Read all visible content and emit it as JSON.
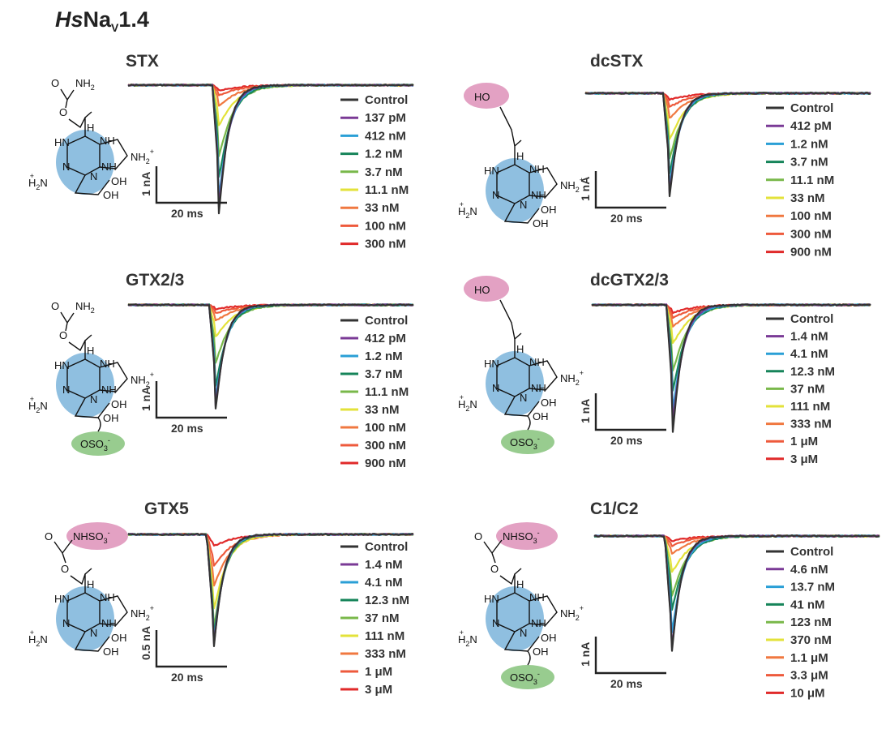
{
  "figure": {
    "title_main": "Hs",
    "title_rest": "Na",
    "title_sub": "V",
    "title_end": "1.4"
  },
  "colors": {
    "series": [
      "#333333",
      "#7a3a96",
      "#2a9fd6",
      "#16845a",
      "#79b84a",
      "#e3e23a",
      "#f07840",
      "#ee5a3c",
      "#e02a2a"
    ],
    "scale": "#222222",
    "blue_core": "#8fbfe0",
    "pink_mod": "#e3a1c3",
    "green_mod": "#98cc8f"
  },
  "structure_labels": {
    "carbamate_o": "O",
    "nh2": "NH",
    "nh2_sub": "2",
    "oh": "OH",
    "ho": "HO",
    "hn": "HN",
    "nh": "NH",
    "n": "N",
    "h": "H",
    "h2n": "H",
    "nh2plus": "NH",
    "oso3": "OSO",
    "nhso3": "NHSO"
  },
  "chart_data": [
    {
      "id": "STX",
      "type": "line",
      "title": "STX",
      "legend": [
        "Control",
        "137 pM",
        "412 nM",
        "1.2 nM",
        "3.7 nM",
        "11.1 nM",
        "33 nM",
        "100 nM",
        "300 nM"
      ],
      "peak_depth_fraction": [
        1.0,
        0.95,
        0.87,
        0.72,
        0.55,
        0.31,
        0.16,
        0.08,
        0.04
      ],
      "scale_y": "1 nA",
      "scale_x": "20 ms"
    },
    {
      "id": "dcSTX",
      "type": "line",
      "title": "dcSTX",
      "legend": [
        "Control",
        "412 pM",
        "1.2 nM",
        "3.7 nM",
        "11.1 nM",
        "33 nM",
        "100 nM",
        "300 nM",
        "900 nM"
      ],
      "peak_depth_fraction": [
        1.0,
        0.97,
        0.9,
        0.78,
        0.63,
        0.45,
        0.24,
        0.13,
        0.06
      ],
      "scale_y": "1 nA",
      "scale_x": "20 ms"
    },
    {
      "id": "GTX23",
      "type": "line",
      "title": "GTX2/3",
      "legend": [
        "Control",
        "412 pM",
        "1.2 nM",
        "3.7 nM",
        "11.1 nM",
        "33 nM",
        "100 nM",
        "300 nM",
        "900 nM"
      ],
      "peak_depth_fraction": [
        1.0,
        0.97,
        0.9,
        0.78,
        0.55,
        0.3,
        0.15,
        0.08,
        0.04
      ],
      "scale_y": "1 nA",
      "scale_x": "20 ms"
    },
    {
      "id": "dcGTX23",
      "type": "line",
      "title": "dcGTX2/3",
      "legend": [
        "Control",
        "1.4 nM",
        "4.1 nM",
        "12.3 nM",
        "37 nM",
        "111 nM",
        "333 nM",
        "1 μM",
        "3 μM"
      ],
      "peak_depth_fraction": [
        1.0,
        0.92,
        0.82,
        0.68,
        0.52,
        0.3,
        0.17,
        0.1,
        0.06
      ],
      "scale_y": "1 nA",
      "scale_x": "20 ms"
    },
    {
      "id": "GTX5",
      "type": "line",
      "title": "GTX5",
      "legend": [
        "Control",
        "1.4 nM",
        "4.1 nM",
        "12.3 nM",
        "37 nM",
        "111 nM",
        "333 nM",
        "1 μM",
        "3 μM"
      ],
      "peak_depth_fraction": [
        1.0,
        0.98,
        0.95,
        0.9,
        0.83,
        0.65,
        0.44,
        0.27,
        0.1
      ],
      "scale_y": "0.5 nA",
      "scale_x": "20 ms"
    },
    {
      "id": "C1C2",
      "type": "line",
      "title": "C1/C2",
      "legend": [
        "Control",
        "4.6 nM",
        "13.7 nM",
        "41 nM",
        "123 nM",
        "370 nM",
        "1.1 μM",
        "3.3 μM",
        "10 μM"
      ],
      "peak_depth_fraction": [
        1.0,
        0.97,
        0.83,
        0.62,
        0.5,
        0.3,
        0.15,
        0.08,
        0.04
      ],
      "scale_y": "1 nA",
      "scale_x": "20 ms"
    }
  ]
}
